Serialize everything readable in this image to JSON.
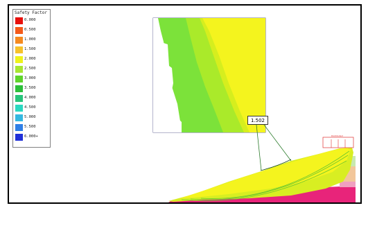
{
  "legend": {
    "title": "Safety Factor",
    "items": [
      {
        "label": "0.000",
        "color": "#e8100c"
      },
      {
        "label": "0.500",
        "color": "#f45a1a"
      },
      {
        "label": "1.000",
        "color": "#f58a1f"
      },
      {
        "label": "1.500",
        "color": "#f6c22a"
      },
      {
        "label": "2.000",
        "color": "#eef21a"
      },
      {
        "label": "2.500",
        "color": "#a8e630"
      },
      {
        "label": "3.000",
        "color": "#5fd42b"
      },
      {
        "label": "3.500",
        "color": "#2dbf3a"
      },
      {
        "label": "4.000",
        "color": "#27c47a"
      },
      {
        "label": "4.500",
        "color": "#2ad8c0"
      },
      {
        "label": "5.000",
        "color": "#34b8e0"
      },
      {
        "label": "5.500",
        "color": "#2f7fe6"
      },
      {
        "label": "6.000+",
        "color": "#2030d8"
      }
    ]
  },
  "zoom": {
    "fs_label": "1.502"
  },
  "slope": {
    "load_label": "Distributed"
  },
  "colors": {
    "frame": "#000000",
    "pink": "#e8247a",
    "yellow": "#f4f41e"
  }
}
